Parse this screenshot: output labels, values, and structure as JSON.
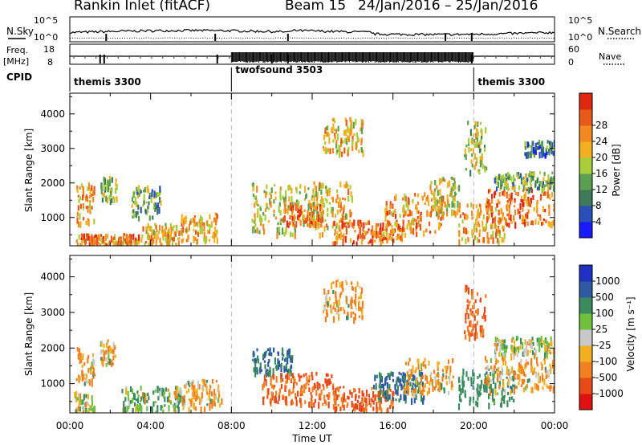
{
  "header": {
    "radar": "Rankin Inlet (fitACF)",
    "beam": "Beam 15",
    "date_range": "24/Jan/2016 – 25/Jan/2016"
  },
  "strips": {
    "nsky_label": "N.Sky",
    "nsearch_label": "N.Search",
    "freq_label_1": "Freq.",
    "freq_label_2": "[MHz]",
    "nave_label": "Nave",
    "cpid_label": "CPID",
    "nsky_ticks": [
      "10^5",
      "10^0"
    ],
    "nsearch_ticks": [
      "10^5",
      "10^0"
    ],
    "freq_ticks": [
      "18",
      "8"
    ],
    "nave_ticks": [
      "60",
      "0"
    ]
  },
  "cpid": {
    "segments": [
      {
        "label": "themis 3300",
        "start": 0,
        "end": 8
      },
      {
        "label": "twofsound 3503",
        "start": 8,
        "end": 20
      },
      {
        "label": "themis 3300",
        "start": 20,
        "end": 24
      }
    ]
  },
  "chart_data": [
    {
      "type": "heatmap",
      "title": "Power",
      "ylabel": "Slant Range [km]",
      "xlabel": "Time UT",
      "x_unit": "hours UT",
      "xlim": [
        0,
        24
      ],
      "ylim": [
        180,
        4600
      ],
      "xticks": [
        "00:00",
        "04:00",
        "08:00",
        "12:00",
        "16:00",
        "20:00",
        "00:00"
      ],
      "yticks": [
        1000,
        2000,
        3000,
        4000
      ],
      "colorbar": {
        "label": "Power [dB]",
        "ticks": [
          "4",
          "8",
          "12",
          "16",
          "20",
          "24",
          "28"
        ],
        "colors": [
          "#1a1aff",
          "#2a4fb8",
          "#3c7a5a",
          "#5aa050",
          "#a8cc3a",
          "#f2b020",
          "#f08a20",
          "#e85a1a",
          "#e02810"
        ]
      },
      "regions": [
        {
          "t0": 0.3,
          "t1": 1.2,
          "r0": 800,
          "r1": 2000,
          "value": 24
        },
        {
          "t0": 1.5,
          "t1": 2.3,
          "r0": 1500,
          "r1": 2200,
          "value": 16
        },
        {
          "t0": 0.3,
          "t1": 3.5,
          "r0": 200,
          "r1": 500,
          "value": 26
        },
        {
          "t0": 3.0,
          "t1": 4.5,
          "r0": 1000,
          "r1": 1900,
          "value": 14
        },
        {
          "t0": 3.5,
          "t1": 5.5,
          "r0": 200,
          "r1": 800,
          "value": 22
        },
        {
          "t0": 5.5,
          "t1": 7.3,
          "r0": 300,
          "r1": 1100,
          "value": 24
        },
        {
          "t0": 9.0,
          "t1": 12.5,
          "r0": 500,
          "r1": 2000,
          "value": 20
        },
        {
          "t0": 10.5,
          "t1": 12.5,
          "r0": 800,
          "r1": 1400,
          "value": 28
        },
        {
          "t0": 12.0,
          "t1": 14.0,
          "r0": 700,
          "r1": 2000,
          "value": 22
        },
        {
          "t0": 13.0,
          "t1": 16.5,
          "r0": 250,
          "r1": 900,
          "value": 28
        },
        {
          "t0": 15.5,
          "t1": 18.5,
          "r0": 500,
          "r1": 1700,
          "value": 26
        },
        {
          "t0": 12.5,
          "t1": 14.5,
          "r0": 2800,
          "r1": 3900,
          "value": 22
        },
        {
          "t0": 17.8,
          "t1": 19.3,
          "r0": 1100,
          "r1": 2200,
          "value": 20
        },
        {
          "t0": 19.2,
          "t1": 21.5,
          "r0": 300,
          "r1": 1400,
          "value": 24
        },
        {
          "t0": 19.5,
          "t1": 20.6,
          "r0": 2300,
          "r1": 3800,
          "value": 18
        },
        {
          "t0": 20.5,
          "t1": 24.0,
          "r0": 800,
          "r1": 1800,
          "value": 28
        },
        {
          "t0": 21.0,
          "t1": 24.0,
          "r0": 1800,
          "r1": 2300,
          "value": 14
        },
        {
          "t0": 22.5,
          "t1": 24.0,
          "r0": 2800,
          "r1": 3200,
          "value": 10
        }
      ]
    },
    {
      "type": "heatmap",
      "title": "Velocity",
      "ylabel": "Slant Range [km]",
      "xlabel": "Time UT",
      "x_unit": "hours UT",
      "xlim": [
        0,
        24
      ],
      "ylim": [
        180,
        4600
      ],
      "xticks": [
        "00:00",
        "04:00",
        "08:00",
        "12:00",
        "16:00",
        "20:00",
        "00:00"
      ],
      "yticks": [
        1000,
        2000,
        3000,
        4000
      ],
      "colorbar": {
        "label": "Velocity [m s⁻¹]",
        "ticks": [
          "1000",
          "500",
          "100",
          "25",
          "-25",
          "-100",
          "-500",
          "-1000"
        ],
        "colors": [
          "#2030c0",
          "#2e5aa0",
          "#3c8a60",
          "#70c040",
          "#c8c8c8",
          "#f0b020",
          "#f08020",
          "#e84a1a",
          "#e01010"
        ]
      },
      "regions": [
        {
          "t0": 0.2,
          "t1": 1.2,
          "r0": 200,
          "r1": 800,
          "value": 15
        },
        {
          "t0": 0.3,
          "t1": 1.2,
          "r0": 1000,
          "r1": 2000,
          "value": -100
        },
        {
          "t0": 1.5,
          "t1": 2.3,
          "r0": 1500,
          "r1": 2200,
          "value": -100
        },
        {
          "t0": 2.5,
          "t1": 5.5,
          "r0": 200,
          "r1": 900,
          "value": 100
        },
        {
          "t0": 5.5,
          "t1": 7.5,
          "r0": 300,
          "r1": 1100,
          "value": -100
        },
        {
          "t0": 9.0,
          "t1": 11.0,
          "r0": 1200,
          "r1": 2000,
          "value": 500
        },
        {
          "t0": 9.5,
          "t1": 13.0,
          "r0": 400,
          "r1": 1300,
          "value": -500
        },
        {
          "t0": 13.0,
          "t1": 16.0,
          "r0": 250,
          "r1": 900,
          "value": -500
        },
        {
          "t0": 15.0,
          "t1": 17.5,
          "r0": 500,
          "r1": 1300,
          "value": 500
        },
        {
          "t0": 16.5,
          "t1": 19.0,
          "r0": 700,
          "r1": 1700,
          "value": -100
        },
        {
          "t0": 12.5,
          "t1": 14.5,
          "r0": 2800,
          "r1": 3900,
          "value": -100
        },
        {
          "t0": 19.2,
          "t1": 22.0,
          "r0": 400,
          "r1": 1400,
          "value": 300
        },
        {
          "t0": 19.5,
          "t1": 20.6,
          "r0": 2300,
          "r1": 3800,
          "value": -500
        },
        {
          "t0": 20.5,
          "t1": 24.0,
          "r0": 800,
          "r1": 1800,
          "value": -100
        },
        {
          "t0": 21.0,
          "t1": 24.0,
          "r0": 1800,
          "r1": 2300,
          "value": 10
        }
      ]
    }
  ]
}
